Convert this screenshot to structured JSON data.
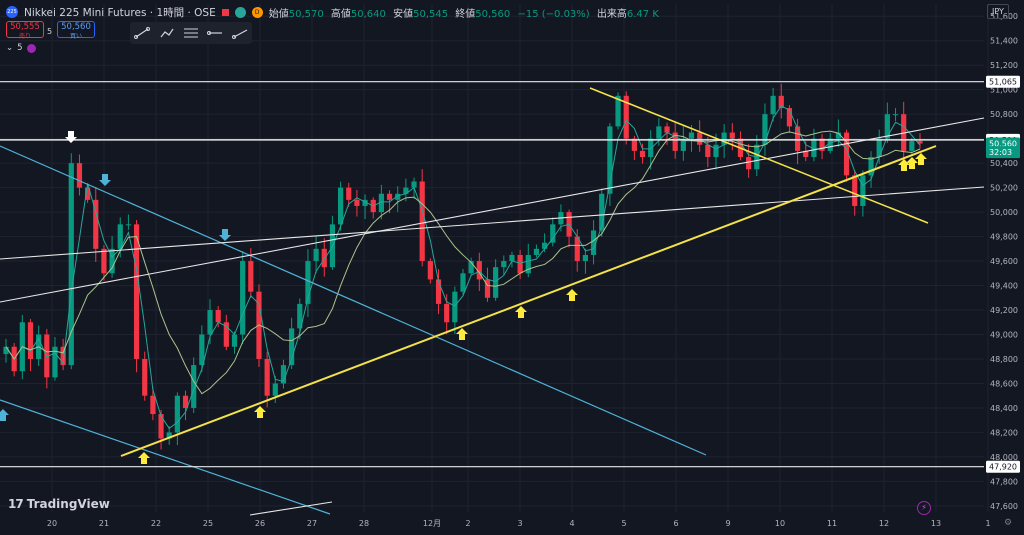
{
  "header": {
    "symbol_badge": "225",
    "title": "Nikkei 225 Mini Futures · 1時間 · OSE",
    "status_dot": "D",
    "ohlc": [
      {
        "label": "始値",
        "value": "50,570"
      },
      {
        "label": "高値",
        "value": "50,640"
      },
      {
        "label": "安値",
        "value": "50,545"
      },
      {
        "label": "終値",
        "value": "50,560"
      }
    ],
    "change": "−15 (−0.03%)",
    "volume_label": "出来高",
    "volume_value": "6.47 K"
  },
  "trade": {
    "sell_price": "50,555",
    "sell_label": "売り",
    "spread": "5",
    "buy_price": "50,560",
    "buy_label": "買い"
  },
  "indicator": {
    "count": "5"
  },
  "toolbar": {
    "tools": [
      "trend-line-icon",
      "path-icon",
      "pitchfork-icon",
      "horizontal-ray-icon",
      "ray-icon"
    ]
  },
  "currency": "JPY",
  "branding": "TradingView",
  "colors": {
    "up": "#089981",
    "down": "#f23645",
    "yellow": "#f4e24a",
    "cyan": "#4fb3d9",
    "white": "#e8e8e8",
    "ma": "#a9c48a",
    "bg": "#131722",
    "grid": "#1f2330"
  },
  "chart_data": {
    "type": "candlestick",
    "y_range": [
      47550,
      51700
    ],
    "y_ticks": [
      "51,600",
      "51,400",
      "51,200",
      "51,000",
      "50,800",
      "50,600",
      "50,400",
      "50,200",
      "50,000",
      "49,800",
      "49,600",
      "49,400",
      "49,200",
      "49,000",
      "48,800",
      "48,600",
      "48,400",
      "48,200",
      "48,000",
      "47,800",
      "47,600"
    ],
    "x_ticks": [
      "20",
      "21",
      "22",
      "25",
      "26",
      "27",
      "28",
      "12月",
      "2",
      "3",
      "4",
      "5",
      "6",
      "9",
      "10",
      "11",
      "12",
      "13",
      "1"
    ],
    "price_labels": [
      {
        "text": "51,065",
        "value": 51065,
        "style": "white"
      },
      {
        "text": "50,590",
        "value": 50590,
        "style": "white"
      },
      {
        "text": "50,560",
        "value": 50560,
        "style": "green"
      },
      {
        "text": "32:03",
        "value": 50490,
        "style": "green"
      },
      {
        "text": "47,920",
        "value": 47920,
        "style": "white"
      }
    ],
    "horizontal_lines": [
      51065,
      50590,
      47920
    ],
    "close_series": [
      48900,
      48700,
      49100,
      48800,
      49000,
      48650,
      48900,
      48750,
      50400,
      50200,
      50100,
      49700,
      49500,
      49700,
      49900,
      49900,
      48800,
      48500,
      48350,
      48150,
      48200,
      48500,
      48400,
      48750,
      49000,
      49200,
      49100,
      48900,
      49000,
      49600,
      49350,
      48800,
      48500,
      48600,
      48750,
      49050,
      49250,
      49600,
      49700,
      49550,
      49900,
      50200,
      50100,
      50050,
      50100,
      50000,
      50150,
      50100,
      50150,
      50200,
      50250,
      49600,
      49450,
      49250,
      49100,
      49350,
      49500,
      49600,
      49450,
      49300,
      49550,
      49600,
      49650,
      49500,
      49650,
      49700,
      49750,
      49900,
      50000,
      49800,
      49600,
      49650,
      49850,
      50150,
      50700,
      50950,
      50600,
      50500,
      50450,
      50600,
      50700,
      50650,
      50500,
      50600,
      50650,
      50550,
      50450,
      50550,
      50650,
      50600,
      50450,
      50350,
      50550,
      50800,
      50950,
      50850,
      50700,
      50500,
      50450,
      50600,
      50500,
      50600,
      50650,
      50300,
      50050,
      50300,
      50450,
      50600,
      50800,
      50800,
      50500,
      50580,
      50560
    ]
  }
}
